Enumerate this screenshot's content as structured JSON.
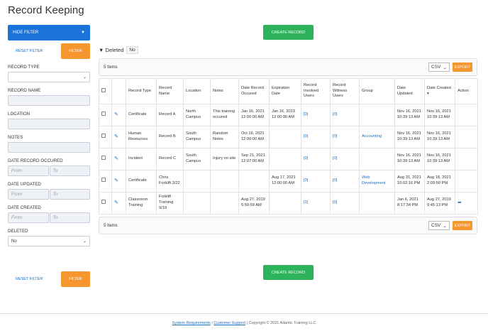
{
  "page": {
    "title": "Record Keeping"
  },
  "sidebar": {
    "hide_filter": "HIDE FILTER",
    "reset": "RESET FILTER",
    "filter": "FILTER",
    "record_type": "RECORD TYPE",
    "record_name": "RECORD NAME",
    "location": "LOCATION",
    "notes": "NOTES",
    "date_occurred": "DATE RECORD OCCURED",
    "date_updated": "DATE UPDATED",
    "date_created": "DATE CREATED",
    "from_ph": "From",
    "to_ph": "To",
    "deleted": "DELETED",
    "deleted_value": "No"
  },
  "main": {
    "create": "CREATE RECORD",
    "deleted_label": "Deleted",
    "deleted_value": "No",
    "items": "5 Items",
    "csv": "CSV",
    "export": "EXPORT",
    "columns": [
      "Record Type",
      "Record Name",
      "Location",
      "Notes",
      "Date Record Occured",
      "Expiration Date",
      "Record Involved Users",
      "Record Witness Users",
      "Group",
      "Date Updated",
      "Date Created ▾",
      "Action"
    ],
    "rows": [
      [
        "Certificate",
        "Record A",
        "North Campus",
        "This training occured",
        "Jan 16, 2021 12:00:00 AM",
        "Jan 16, 2023 12:00:00 AM",
        "[0]",
        "[0]",
        "",
        "Nov 16, 2021 10:39:13 AM",
        "Nov 16, 2021 10:39:13 AM",
        ""
      ],
      [
        "Human Resources",
        "Record B",
        "South Campus",
        "Random Notes",
        "Oct 16, 2021 12:00:00 AM",
        "",
        "[0]",
        "[0]",
        "Accounting",
        "Nov 16, 2021 10:39:13 AM",
        "Nov 16, 2021 10:39:13 AM",
        ""
      ],
      [
        "Incident",
        "Record C",
        "South Campus",
        "Injury on site",
        "Sep 21, 2021 12:07:00 AM",
        "",
        "[0]",
        "[0]",
        "",
        "Nov 16, 2021 10:39:13 AM",
        "Nov 16, 2021 10:39:13 AM",
        ""
      ],
      [
        "Certificate",
        "Chris Forklift 3/22",
        "",
        "",
        "",
        "Aug 17, 2021 12:00:00 AM",
        "[0]",
        "[0]",
        "Web Development",
        "Aug 31, 2021 10:02:16 PM",
        "Aug 18, 2021 2:09:50 PM",
        ""
      ],
      [
        "Classroom Training",
        "Forklift Training 9/19",
        "",
        "",
        "Aug 27, 2019 5:59:59 AM",
        "",
        "[1]",
        "[0]",
        "",
        "Jan 6, 2021 8:17:34 PM",
        "Aug 27, 2019 9:45:13 PM",
        "share"
      ]
    ]
  },
  "footer": {
    "req": "System Requirements",
    "sep": " | ",
    "support": "Customer Support",
    "copy": " | Copyright © 2021 Atlantic Training LLC"
  }
}
